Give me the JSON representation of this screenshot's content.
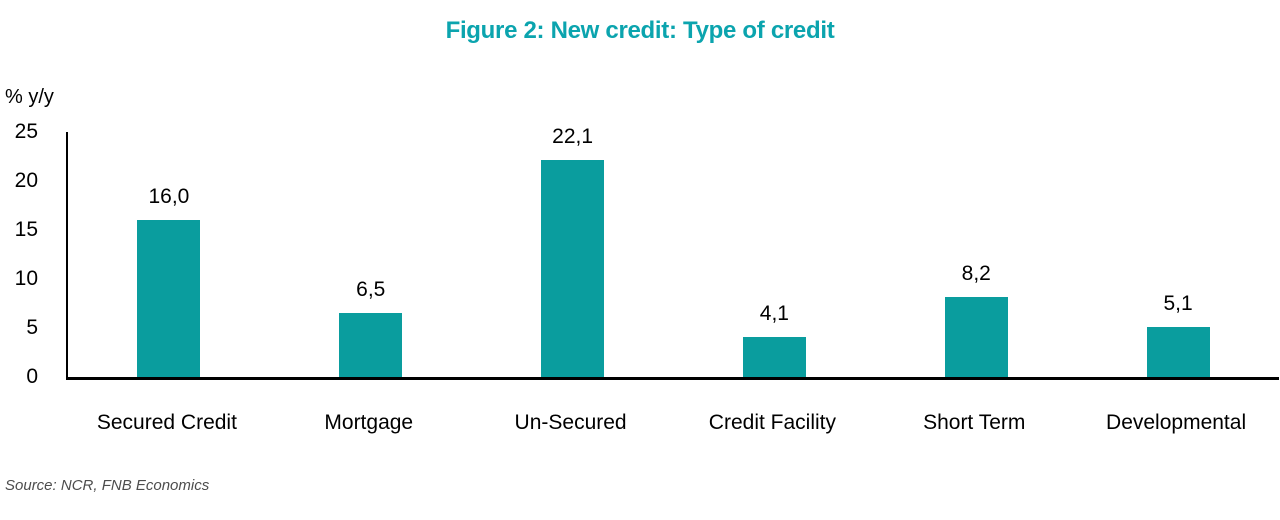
{
  "chart_data": {
    "type": "bar",
    "title": "Figure 2: New credit: Type of credit",
    "categories": [
      "Secured Credit",
      "Mortgage",
      "Un-Secured",
      "Credit Facility",
      "Short Term",
      "Developmental"
    ],
    "values": [
      16.0,
      6.5,
      22.1,
      4.1,
      8.2,
      5.1
    ],
    "value_labels": [
      "16,0",
      "6,5",
      "22,1",
      "4,1",
      "8,2",
      "5,1"
    ],
    "ylabel": "% y/y",
    "xlabel": "",
    "ylim": [
      0,
      25
    ],
    "yticks": [
      0,
      5,
      10,
      15,
      20,
      25
    ],
    "grid": false,
    "legend": null,
    "bar_color": "#0a9d9e",
    "title_color": "#0ba4ae",
    "axis_color": "#000000",
    "source_note": "Source: NCR, FNB Economics"
  }
}
